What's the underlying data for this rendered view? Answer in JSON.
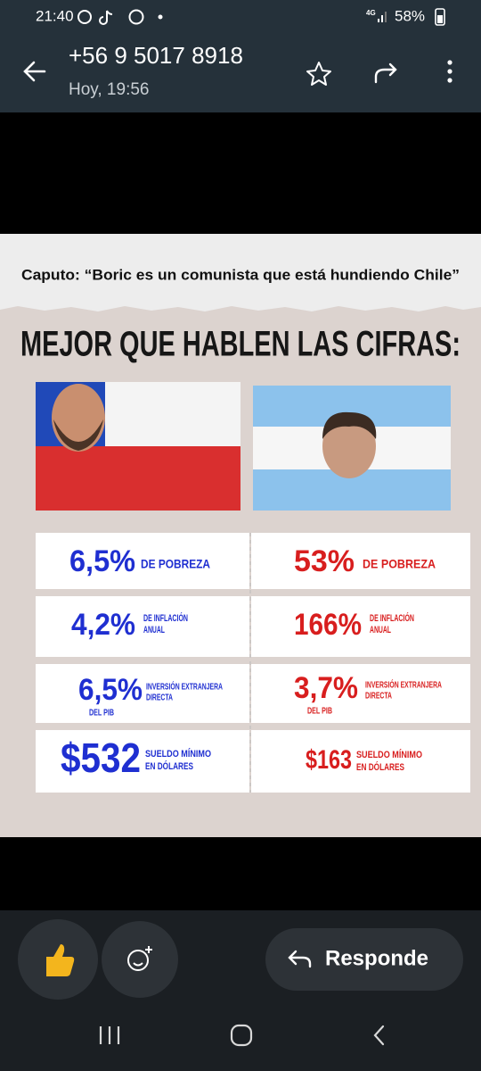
{
  "status_bar": {
    "time": "21:40",
    "network": "4G",
    "battery": "58%"
  },
  "header": {
    "contact": "+56 9 5017 8918",
    "timestamp": "Hoy, 19:56"
  },
  "image": {
    "quote": "Caputo: “Boric es un comunista que está hundiendo Chile”",
    "title": "MEJOR QUE HABLEN LAS CIFRAS:",
    "rows": [
      {
        "chile": {
          "figure": "6,5%",
          "label_lines": [
            "DE POBREZA"
          ]
        },
        "argentina": {
          "figure": "53%",
          "label_lines": [
            "DE POBREZA"
          ]
        }
      },
      {
        "chile": {
          "figure": "4,2%",
          "label_lines": [
            "DE INFLACIÓN",
            "ANUAL"
          ]
        },
        "argentina": {
          "figure": "166%",
          "label_lines": [
            "DE INFLACIÓN",
            "ANUAL"
          ]
        }
      },
      {
        "chile": {
          "figure": "6,5%",
          "label_lines": [
            "INVERSIÓN EXTRANJERA",
            "DIRECTA"
          ],
          "sub": "DEL PIB"
        },
        "argentina": {
          "figure": "3,7%",
          "label_lines": [
            "INVERSIÓN EXTRANJERA",
            "DIRECTA"
          ],
          "sub": "DEL PIB"
        }
      },
      {
        "chile": {
          "figure": "$532",
          "label_lines": [
            "SUELDO MÍNIMO",
            "EN DÓLARES"
          ]
        },
        "argentina": {
          "figure": "$163",
          "label_lines": [
            "SUELDO MÍNIMO",
            "EN DÓLARES"
          ]
        }
      }
    ]
  },
  "actions": {
    "reply": "Responde"
  }
}
